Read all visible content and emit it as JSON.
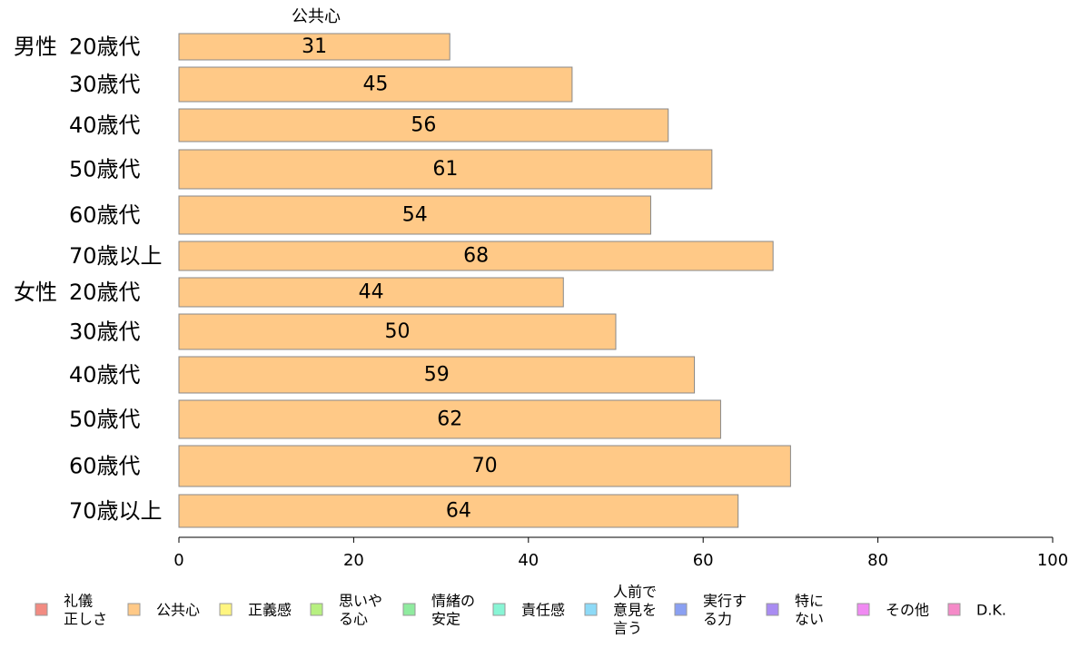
{
  "chart_data": {
    "type": "bar",
    "orientation": "horizontal",
    "title": "公共心",
    "group_labels": [
      "男性",
      "女性"
    ],
    "categories": [
      "20歳代",
      "30歳代",
      "40歳代",
      "50歳代",
      "60歳代",
      "70歳以上",
      "20歳代",
      "30歳代",
      "40歳代",
      "50歳代",
      "60歳代",
      "70歳以上"
    ],
    "values": [
      31,
      45,
      56,
      61,
      54,
      68,
      44,
      50,
      59,
      62,
      70,
      64
    ],
    "xlim": [
      0,
      100
    ],
    "xticks": [
      0,
      20,
      40,
      60,
      80,
      100
    ],
    "grid": false,
    "bar_color": "#FFC987",
    "bar_edge_color": "#888888",
    "legend_position": "bottom",
    "legend": [
      {
        "label": "礼儀\n正しさ",
        "color": "#F28B82"
      },
      {
        "label": "公共心",
        "color": "#FFC987"
      },
      {
        "label": "正義感",
        "color": "#FFF580"
      },
      {
        "label": "思いや\nる心",
        "color": "#B7F080"
      },
      {
        "label": "情緒の\n安定",
        "color": "#8FEB9F"
      },
      {
        "label": "責任感",
        "color": "#88F5D5"
      },
      {
        "label": "人前で\n意見を\n言う",
        "color": "#8DDAF7"
      },
      {
        "label": "実行す\nる力",
        "color": "#8AA0F2"
      },
      {
        "label": "特に\nない",
        "color": "#A98CF2"
      },
      {
        "label": "その他",
        "color": "#F08AF2"
      },
      {
        "label": "D.K.",
        "color": "#F58AC8"
      }
    ]
  }
}
